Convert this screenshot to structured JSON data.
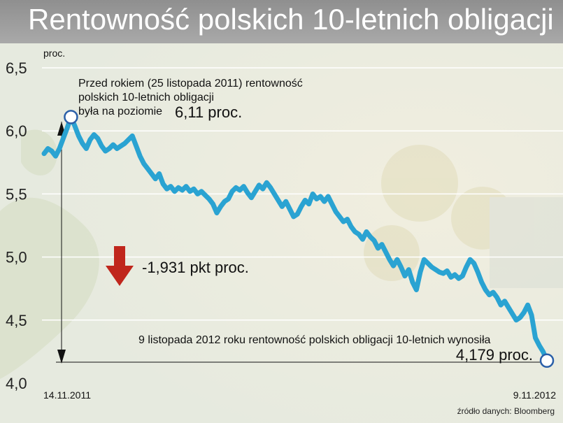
{
  "title": "Rentowność polskich 10-letnich obligacji",
  "chart_data": {
    "type": "line",
    "ylabel": "proc.",
    "ylim": [
      4.0,
      6.5
    ],
    "yticks": [
      "6,5",
      "6,0",
      "5,5",
      "5,0",
      "4,5",
      "4,0"
    ],
    "start_label": "14.11.2011",
    "end_label": "9.11.2012",
    "grid": true,
    "series": [
      {
        "color": "#2aa3d2",
        "values": [
          5.82,
          5.86,
          5.84,
          5.8,
          5.86,
          5.94,
          6.02,
          6.11,
          6.04,
          5.96,
          5.9,
          5.86,
          5.93,
          5.97,
          5.94,
          5.88,
          5.84,
          5.86,
          5.89,
          5.86,
          5.88,
          5.9,
          5.93,
          5.96,
          5.88,
          5.8,
          5.74,
          5.7,
          5.66,
          5.62,
          5.66,
          5.58,
          5.54,
          5.56,
          5.52,
          5.55,
          5.53,
          5.56,
          5.52,
          5.54,
          5.5,
          5.52,
          5.49,
          5.46,
          5.42,
          5.35,
          5.4,
          5.44,
          5.46,
          5.52,
          5.55,
          5.53,
          5.56,
          5.51,
          5.47,
          5.52,
          5.57,
          5.54,
          5.59,
          5.55,
          5.5,
          5.45,
          5.4,
          5.44,
          5.38,
          5.32,
          5.34,
          5.4,
          5.45,
          5.42,
          5.5,
          5.46,
          5.48,
          5.44,
          5.48,
          5.42,
          5.36,
          5.32,
          5.28,
          5.3,
          5.24,
          5.2,
          5.18,
          5.14,
          5.2,
          5.16,
          5.13,
          5.07,
          5.1,
          5.04,
          4.98,
          4.93,
          4.98,
          4.92,
          4.85,
          4.9,
          4.8,
          4.74,
          4.88,
          4.98,
          4.95,
          4.92,
          4.9,
          4.88,
          4.87,
          4.89,
          4.84,
          4.86,
          4.83,
          4.85,
          4.92,
          4.98,
          4.95,
          4.88,
          4.8,
          4.74,
          4.7,
          4.72,
          4.68,
          4.62,
          4.65,
          4.6,
          4.55,
          4.5,
          4.52,
          4.56,
          4.62,
          4.54,
          4.36,
          4.3,
          4.25,
          4.179
        ]
      }
    ],
    "annotations": {
      "start_note": [
        "Przed rokiem (25 listopada 2011) rentowność",
        "polskich 10-letnich obligacji",
        "była na poziomie"
      ],
      "start_value": "6,11 proc.",
      "change": "-1,931 pkt proc.",
      "end_note": "9 listopada 2012 roku rentowność polskich obligacji 10-letnich wynosiła",
      "end_value": "4,179 proc."
    },
    "source": "źródło danych: Bloomberg"
  }
}
